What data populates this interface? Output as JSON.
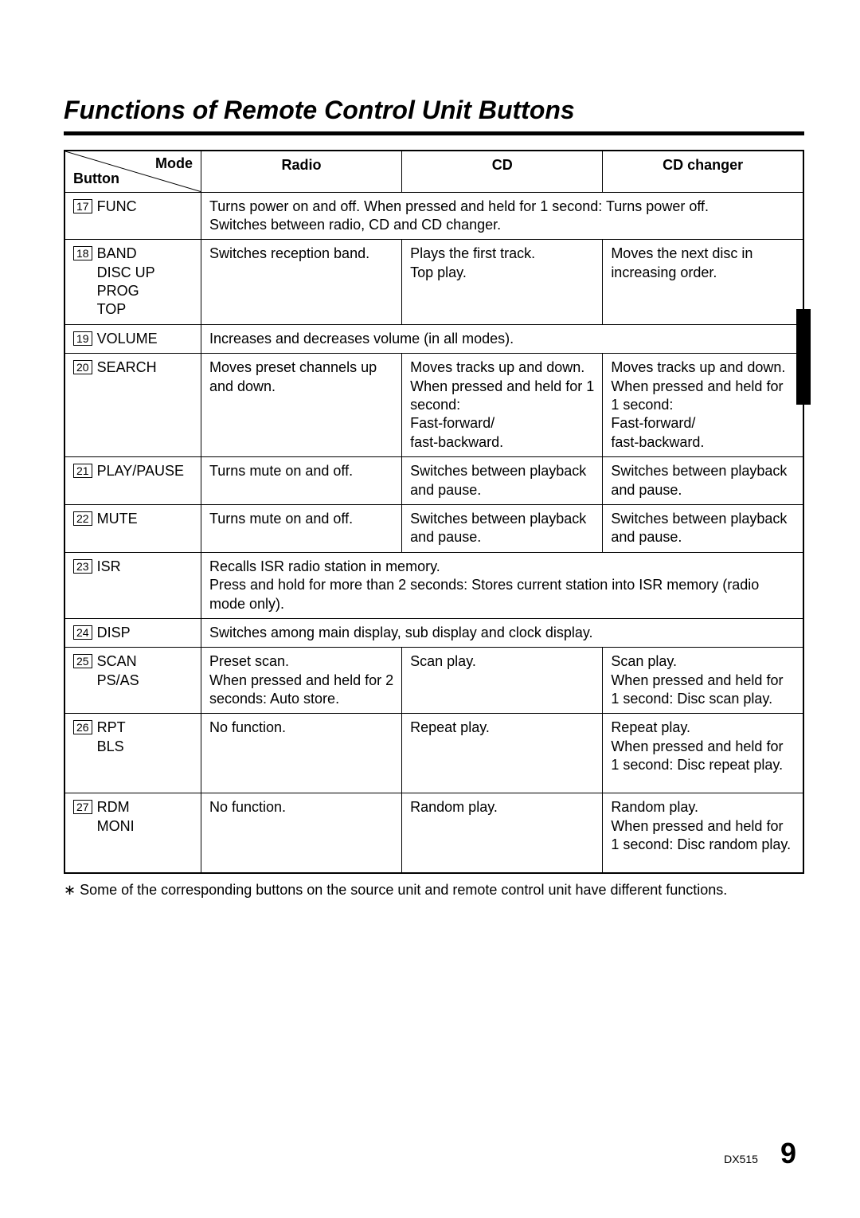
{
  "title": "Functions of Remote Control Unit Buttons",
  "headers": {
    "mode": "Mode",
    "button": "Button",
    "radio": "Radio",
    "cd": "CD",
    "cd_changer": "CD changer"
  },
  "rows": [
    {
      "num": "17",
      "label": "FUNC",
      "span": true,
      "full": "Turns power on and off. When pressed and held for 1 second: Turns power off.\nSwitches between radio, CD and CD changer."
    },
    {
      "num": "18",
      "label": "BAND\nDISC UP\nPROG\nTOP",
      "radio": "Switches reception band.",
      "cd": "Plays the first track.\nTop play.",
      "changer": "Moves the next disc in increasing order."
    },
    {
      "num": "19",
      "label": "VOLUME",
      "span": true,
      "full": "Increases and decreases volume (in all modes)."
    },
    {
      "num": "20",
      "label": "SEARCH",
      "radio": "Moves preset channels up and down.",
      "cd": "Moves tracks up and down.\nWhen pressed and held for 1 second:\nFast-forward/\nfast-backward.",
      "changer": "Moves tracks up and down.\nWhen pressed and held for 1 second:\nFast-forward/\nfast-backward."
    },
    {
      "num": "21",
      "label": "PLAY/PAUSE",
      "radio": "Turns mute on and off.",
      "cd": "Switches between playback and pause.",
      "changer": "Switches between playback and pause."
    },
    {
      "num": "22",
      "label": "MUTE",
      "radio": "Turns mute on and off.",
      "cd": "Switches between playback and pause.",
      "changer": "Switches between playback and pause."
    },
    {
      "num": "23",
      "label": "ISR",
      "span": true,
      "full": "Recalls ISR radio station in memory.\nPress and hold for more than 2 seconds: Stores current station into ISR memory (radio mode only)."
    },
    {
      "num": "24",
      "label": "DISP",
      "span": true,
      "full": "Switches among main display, sub display and clock display."
    },
    {
      "num": "25",
      "label": "SCAN\nPS/AS",
      "radio": "Preset scan.\nWhen pressed and held for 2 seconds: Auto store.",
      "cd": "Scan play.",
      "changer": "Scan play.\nWhen pressed and held for 1 second: Disc scan play."
    },
    {
      "num": "26",
      "label": "RPT\nBLS",
      "radio": "No function.",
      "cd": "Repeat play.",
      "changer": "Repeat play.\nWhen pressed and held for 1 second: Disc repeat play.",
      "tall": true
    },
    {
      "num": "27",
      "label": "RDM\nMONI",
      "radio": "No function.",
      "cd": "Random play.",
      "changer": "Random play.\nWhen pressed and held for 1 second: Disc random play.",
      "tall": true
    }
  ],
  "footnote": "∗ Some of the corresponding buttons on the source unit and remote control unit have different functions.",
  "side_tab": "",
  "model": "DX515",
  "page_number": "9",
  "colors": {
    "text": "#000000",
    "background": "#ffffff",
    "rule": "#000000",
    "tab_bg": "#000000",
    "tab_text": "#ffffff"
  }
}
